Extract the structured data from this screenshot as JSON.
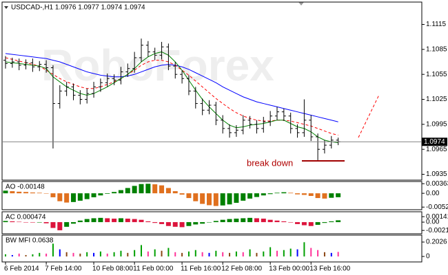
{
  "chart_data": [
    {
      "type": "ohlc",
      "title": "USDCAD-,H1 1.0976 1.0977 1.0974 1.0974",
      "watermark": "RoboForex",
      "annotation": "break down",
      "categories": [
        "6 Feb 2014",
        null,
        null,
        null,
        null,
        null,
        "7 Feb 14:00",
        null,
        null,
        null,
        null,
        null,
        null,
        "10 Feb 08:00",
        null,
        null,
        null,
        null,
        null,
        "11 Feb 00:00",
        null,
        null,
        null,
        null,
        null,
        null,
        "11 Feb 16:00",
        null,
        null,
        null,
        null,
        null,
        "12 Feb 08:00",
        null,
        null,
        null,
        null,
        null,
        null,
        "13 Feb 00:00",
        null,
        null,
        null,
        null,
        null,
        "13 Feb 16:00",
        null,
        null,
        null,
        null
      ],
      "open": [
        1.1072,
        1.1068,
        1.107,
        1.1066,
        1.1069,
        1.1064,
        1.1067,
        1.1063,
        1.102,
        1.1035,
        1.104,
        1.103,
        1.1025,
        1.1032,
        1.104,
        1.1045,
        1.105,
        1.1048,
        1.1058,
        1.1062,
        1.1075,
        1.109,
        1.1082,
        1.1078,
        1.1088,
        1.1065,
        1.1055,
        1.105,
        1.1035,
        1.102,
        1.1012,
        1.1018,
        1.1,
        1.099,
        1.0985,
        1.0988,
        1.1,
        1.0995,
        1.099,
        1.0998,
        1.1005,
        1.101,
        1.1005,
        1.099,
        1.0985,
        1.1,
        1.098,
        1.0965,
        1.097,
        1.0976
      ],
      "high": [
        1.1077,
        1.1075,
        1.1074,
        1.1073,
        1.1074,
        1.1071,
        1.1072,
        1.1066,
        1.1042,
        1.1046,
        1.1044,
        1.1036,
        1.1038,
        1.1046,
        1.105,
        1.1056,
        1.1055,
        1.1064,
        1.1068,
        1.1082,
        1.1098,
        1.1095,
        1.1087,
        1.1094,
        1.1092,
        1.107,
        1.106,
        1.1054,
        1.104,
        1.1026,
        1.1024,
        1.1022,
        1.1006,
        1.0995,
        1.0994,
        1.1006,
        1.1005,
        1.1,
        1.1004,
        1.1011,
        1.1016,
        1.1014,
        1.1009,
        1.0995,
        1.1025,
        1.1006,
        1.0984,
        1.0976,
        1.0981,
        1.0979
      ],
      "low": [
        1.1062,
        1.1063,
        1.106,
        1.1061,
        1.1058,
        1.1059,
        1.1057,
        1.0966,
        1.1014,
        1.1029,
        1.1024,
        1.1019,
        1.102,
        1.1027,
        1.1034,
        1.104,
        1.1042,
        1.1043,
        1.1052,
        1.1057,
        1.107,
        1.1076,
        1.1072,
        1.1073,
        1.106,
        1.105,
        1.1044,
        1.103,
        1.1014,
        1.1006,
        1.1007,
        1.0994,
        1.0984,
        1.0979,
        1.098,
        1.0983,
        1.099,
        1.0984,
        1.0985,
        1.0993,
        1.1,
        1.0999,
        1.0984,
        1.0979,
        1.098,
        1.0975,
        1.0952,
        1.096,
        1.0966,
        1.097
      ],
      "close": [
        1.1068,
        1.107,
        1.1066,
        1.1069,
        1.1064,
        1.1067,
        1.1063,
        1.102,
        1.1035,
        1.104,
        1.103,
        1.1025,
        1.1032,
        1.104,
        1.1045,
        1.105,
        1.1048,
        1.1058,
        1.1062,
        1.1075,
        1.109,
        1.1082,
        1.1078,
        1.1088,
        1.1065,
        1.1055,
        1.105,
        1.1035,
        1.102,
        1.1012,
        1.1018,
        1.1,
        1.099,
        1.0985,
        1.0988,
        1.1,
        1.0995,
        1.099,
        1.0998,
        1.1005,
        1.101,
        1.1005,
        1.099,
        1.0985,
        1.1,
        1.098,
        1.0965,
        1.097,
        1.0976,
        1.0974
      ],
      "bar_color": "#000000",
      "series": [
        {
          "color": "#0000ff",
          "dashed": false,
          "values": [
            1.108,
            1.1079,
            1.1078,
            1.1077,
            1.1076,
            1.1075,
            1.1074,
            1.1072,
            1.107,
            1.1067,
            1.1064,
            1.1061,
            1.1058,
            1.1056,
            1.1054,
            1.1053,
            1.1052,
            1.1052,
            1.1053,
            1.1055,
            1.1058,
            1.1061,
            1.1064,
            1.1066,
            1.1067,
            1.1066,
            1.1064,
            1.1061,
            1.1057,
            1.1053,
            1.1049,
            1.1045,
            1.104,
            1.1036,
            1.1032,
            1.1028,
            1.1025,
            1.1022,
            1.102,
            1.1018,
            1.1016,
            1.1014,
            1.1012,
            1.101,
            1.1008,
            1.1006,
            1.1004,
            1.1002,
            1.1,
            1.0998
          ]
        },
        {
          "color": "#ff0000",
          "dashed": true,
          "values": [
            1.1075,
            1.1073,
            1.1071,
            1.1069,
            1.1067,
            1.1065,
            1.106,
            1.1055,
            1.105,
            1.1046,
            1.1043,
            1.104,
            1.1038,
            1.1038,
            1.104,
            1.1043,
            1.1046,
            1.105,
            1.1055,
            1.106,
            1.1066,
            1.107,
            1.1072,
            1.1072,
            1.107,
            1.1066,
            1.106,
            1.1054,
            1.1047,
            1.104,
            1.1033,
            1.1026,
            1.102,
            1.1014,
            1.1009,
            1.1005,
            1.1002,
            1.1,
            1.0999,
            1.0999,
            1.1,
            1.1,
            1.0999,
            1.0997,
            1.0995,
            1.0993,
            1.099,
            1.0987,
            1.0984,
            1.0982
          ]
        },
        {
          "color": "#008000",
          "dashed": false,
          "values": [
            1.107,
            1.1069,
            1.1068,
            1.1067,
            1.1066,
            1.1065,
            1.1062,
            1.1052,
            1.1046,
            1.104,
            1.1036,
            1.1032,
            1.103,
            1.1032,
            1.1036,
            1.104,
            1.1045,
            1.105,
            1.1055,
            1.1062,
            1.107,
            1.1076,
            1.108,
            1.1082,
            1.1078,
            1.107,
            1.106,
            1.1048,
            1.1036,
            1.1025,
            1.1016,
            1.1008,
            1.1,
            1.0994,
            1.0991,
            1.0992,
            1.0994,
            1.0995,
            1.0996,
            1.0998,
            1.1,
            1.1,
            1.0996,
            1.0992,
            1.099,
            1.0986,
            1.098,
            1.0976,
            1.0974,
            1.0973
          ]
        }
      ],
      "last_price": 1.0974,
      "ylim": [
        1.0928,
        1.1141
      ],
      "yticks": [
        1.1115,
        1.1085,
        1.1055,
        1.1025,
        1.0995,
        1.0965,
        1.0935
      ]
    },
    {
      "type": "histogram",
      "title": "AO -0.00148",
      "up_color": "#008000",
      "down_color": "#e0701e",
      "values": [
        0.001,
        0.0008,
        0.0006,
        0.0005,
        0.0003,
        0.0002,
        0.0,
        -0.0015,
        -0.003,
        -0.0035,
        -0.0033,
        -0.0028,
        -0.0022,
        -0.0015,
        -0.0008,
        -0.0002,
        0.0005,
        0.0012,
        0.002,
        0.0028,
        0.0035,
        0.0036,
        0.0034,
        0.003,
        0.002,
        0.0008,
        -0.0005,
        -0.0018,
        -0.003,
        -0.004,
        -0.0045,
        -0.0048,
        -0.0046,
        -0.0042,
        -0.0036,
        -0.0028,
        -0.002,
        -0.0014,
        -0.0008,
        -0.0003,
        0.0002,
        0.0004,
        0.0002,
        -0.0004,
        -0.0006,
        -0.001,
        -0.0018,
        -0.002,
        -0.0017,
        -0.00148
      ],
      "ylim": [
        -0.0062,
        0.0042
      ],
      "yticks": [
        0.00363,
        {
          "value": 0,
          "label": "0.00"
        },
        -0.00522
      ]
    },
    {
      "type": "histogram",
      "title": "AC 0.000474",
      "up_color": "#008000",
      "down_color": "#dc143c",
      "values": [
        0.0003,
        0.0002,
        0.0001,
        0.0,
        -0.0001,
        -0.0001,
        -0.0003,
        -0.0015,
        -0.0021,
        -0.0012,
        -0.0004,
        0.0004,
        0.0008,
        0.001,
        0.0011,
        0.001,
        0.0009,
        0.001,
        0.0009,
        0.0008,
        0.0006,
        0.0002,
        -0.0002,
        -0.0005,
        -0.001,
        -0.0012,
        -0.0013,
        -0.001,
        -0.0006,
        -0.0004,
        0.0,
        0.0003,
        0.0006,
        0.0008,
        0.0009,
        0.001,
        0.0011,
        0.001,
        0.0009,
        0.0006,
        0.0004,
        0.0002,
        -0.0001,
        -0.0005,
        -0.0008,
        -0.001,
        -0.0007,
        -0.0002,
        0.0002,
        0.000474
      ],
      "ylim": [
        -0.003,
        0.0025
      ],
      "yticks": [
        0.00141,
        {
          "value": 0,
          "label": "0.00"
        },
        -0.00214
      ]
    },
    {
      "type": "bar",
      "title": "BW MFI 0.0638",
      "values": [
        0.03,
        0.02,
        0.04,
        0.02,
        0.03,
        0.05,
        0.04,
        0.18,
        0.1,
        0.06,
        0.05,
        0.04,
        0.06,
        0.05,
        0.07,
        0.04,
        0.06,
        0.08,
        0.05,
        0.09,
        0.16,
        0.07,
        0.1,
        0.08,
        0.12,
        0.06,
        0.05,
        0.07,
        0.09,
        0.06,
        0.05,
        0.08,
        0.06,
        0.05,
        0.07,
        0.06,
        0.1,
        0.05,
        0.07,
        0.13,
        0.08,
        0.09,
        0.11,
        0.1,
        0.2,
        0.12,
        0.09,
        0.06,
        0.05,
        0.0638
      ],
      "bar_colors": [
        "#00a000",
        "#0000ff",
        "#ff3399",
        "#8b4513",
        "#00a000",
        "#00a000",
        "#ff3399",
        "#00a000",
        "#0000ff",
        "#8b4513",
        "#ff3399",
        "#8b4513",
        "#00a000",
        "#0000ff",
        "#00a000",
        "#ff3399",
        "#00a000",
        "#00a000",
        "#8b4513",
        "#00a000",
        "#00a000",
        "#ff3399",
        "#00a000",
        "#8b4513",
        "#00a000",
        "#ff3399",
        "#8b4513",
        "#00a000",
        "#00a000",
        "#ff3399",
        "#0000ff",
        "#00a000",
        "#ff3399",
        "#8b4513",
        "#00a000",
        "#ff3399",
        "#00a000",
        "#8b4513",
        "#00a000",
        "#00a000",
        "#ff3399",
        "#00a000",
        "#00a000",
        "#0000ff",
        "#00a000",
        "#ff3399",
        "#ff3399",
        "#8b4513",
        "#0000ff",
        "#ff3399"
      ],
      "ylim": [
        -0.077,
        0.29
      ],
      "yticks": [
        0.2026,
        0
      ]
    }
  ]
}
